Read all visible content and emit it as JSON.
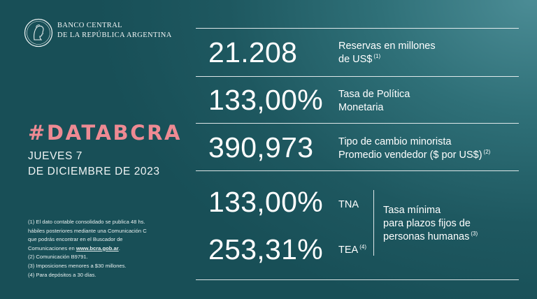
{
  "header": {
    "bank_line1": "BANCO CENTRAL",
    "bank_line2": "DE LA REPÚBLICA ARGENTINA"
  },
  "left": {
    "hashtag": "#DATABCRA",
    "date_line1": "JUEVES 7",
    "date_line2": "DE DICIEMBRE DE 2023"
  },
  "notes": {
    "n1_a": "(1) El dato contable consolidado se publica 48 hs.",
    "n1_b": "hábiles posteriores mediante una Comunicación C",
    "n1_c": "que podrás encontrar en el Buscador de",
    "n1_d_prefix": "Comunicaciones en ",
    "n1_d_link": "www.bcra.gob.ar",
    "n1_d_suffix": ".",
    "n2": "(2) Comunicación B9791.",
    "n3": "(3) Imposiciones menores a $30 millones.",
    "n4": "(4) Para depósitos a 30 días."
  },
  "rows": {
    "reservas": {
      "value": "21.208",
      "label1": "Reservas en millones",
      "label2": "de US$",
      "note": "(1)"
    },
    "tasa": {
      "value": "133,00%",
      "label1": "Tasa de Política",
      "label2": "Monetaria"
    },
    "cambio": {
      "value": "390,973",
      "label1": "Tipo de cambio minorista",
      "label2": "Promedio vendedor ($ por US$)",
      "note": "(2)"
    },
    "plazo": {
      "tna_value": "133,00%",
      "tna_label": "TNA",
      "tea_value": "253,31%",
      "tea_label": "TEA",
      "tea_note": "(4)",
      "desc1": "Tasa mínima",
      "desc2": "para plazos fijos de",
      "desc3": "personas humanas",
      "desc_note": "(3)"
    }
  },
  "colors": {
    "background": "#1e5860",
    "accent": "#ee8a93",
    "text": "#ffffff"
  },
  "icons": {
    "logo": "bcra-seal-icon"
  }
}
